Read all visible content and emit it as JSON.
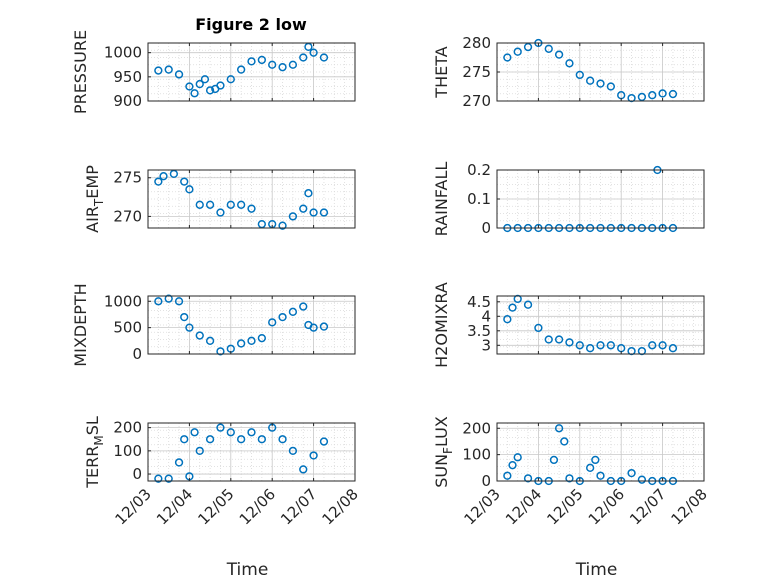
{
  "figure": {
    "title": "Figure 2 low"
  },
  "chart_data": [
    {
      "type": "scatter",
      "title": "Figure 2 low",
      "ylabel": "PRESSURE",
      "ylim": [
        900,
        1020
      ],
      "yticks": [
        900,
        950,
        1000
      ],
      "xlim": [
        "12/03",
        "12/08"
      ],
      "grid": true,
      "marker": "circle-open",
      "color": "#0072BD",
      "x": [
        "12/03 06:00",
        "12/03 12:00",
        "12/03 18:00",
        "12/04 00:00",
        "12/04 03:00",
        "12/04 06:00",
        "12/04 09:00",
        "12/04 12:00",
        "12/04 15:00",
        "12/04 18:00",
        "12/05 00:00",
        "12/05 06:00",
        "12/05 12:00",
        "12/05 18:00",
        "12/06 00:00",
        "12/06 06:00",
        "12/06 12:00",
        "12/06 18:00",
        "12/06 21:00",
        "12/07 00:00",
        "12/07 06:00"
      ],
      "y": [
        963,
        965,
        955,
        930,
        916,
        935,
        945,
        922,
        925,
        932,
        945,
        965,
        982,
        985,
        975,
        970,
        975,
        990,
        1012,
        1000,
        990
      ]
    },
    {
      "type": "scatter",
      "ylabel": "THETA",
      "ylim": [
        270,
        280
      ],
      "yticks": [
        270,
        275,
        280
      ],
      "xlim": [
        "12/03",
        "12/08"
      ],
      "grid": true,
      "marker": "circle-open",
      "color": "#0072BD",
      "x": [
        "12/03 06:00",
        "12/03 12:00",
        "12/03 18:00",
        "12/04 00:00",
        "12/04 06:00",
        "12/04 12:00",
        "12/04 18:00",
        "12/05 00:00",
        "12/05 06:00",
        "12/05 12:00",
        "12/05 18:00",
        "12/06 00:00",
        "12/06 06:00",
        "12/06 12:00",
        "12/06 18:00",
        "12/07 00:00",
        "12/07 06:00"
      ],
      "y": [
        277.5,
        278.5,
        279.3,
        280.0,
        279.0,
        278.0,
        276.5,
        274.5,
        273.5,
        273.0,
        272.5,
        271.0,
        270.5,
        270.7,
        271.0,
        271.3,
        271.2
      ]
    },
    {
      "type": "scatter",
      "ylabel": "AIR_TEMP",
      "ylim": [
        268.5,
        276
      ],
      "yticks": [
        270,
        275
      ],
      "xlim": [
        "12/03",
        "12/08"
      ],
      "grid": true,
      "marker": "circle-open",
      "color": "#0072BD",
      "x": [
        "12/03 06:00",
        "12/03 09:00",
        "12/03 15:00",
        "12/03 21:00",
        "12/04 00:00",
        "12/04 06:00",
        "12/04 12:00",
        "12/04 18:00",
        "12/05 00:00",
        "12/05 06:00",
        "12/05 12:00",
        "12/05 18:00",
        "12/06 00:00",
        "12/06 06:00",
        "12/06 12:00",
        "12/06 18:00",
        "12/06 21:00",
        "12/07 00:00",
        "12/07 06:00"
      ],
      "y": [
        274.5,
        275.2,
        275.5,
        274.5,
        273.5,
        271.5,
        271.5,
        270.5,
        271.5,
        271.5,
        271.0,
        269.0,
        269.0,
        268.8,
        270.0,
        271.0,
        273.0,
        270.5,
        270.5
      ]
    },
    {
      "type": "scatter",
      "ylabel": "RAINFALL",
      "ylim": [
        0,
        0.2
      ],
      "yticks": [
        0,
        0.1,
        0.2
      ],
      "xlim": [
        "12/03",
        "12/08"
      ],
      "grid": true,
      "marker": "circle-open",
      "color": "#0072BD",
      "x": [
        "12/03 06:00",
        "12/03 12:00",
        "12/03 18:00",
        "12/04 00:00",
        "12/04 06:00",
        "12/04 12:00",
        "12/04 18:00",
        "12/05 00:00",
        "12/05 06:00",
        "12/05 12:00",
        "12/05 18:00",
        "12/06 00:00",
        "12/06 06:00",
        "12/06 12:00",
        "12/06 18:00",
        "12/06 21:00",
        "12/07 00:00",
        "12/07 06:00"
      ],
      "y": [
        0,
        0,
        0,
        0,
        0,
        0,
        0,
        0,
        0,
        0,
        0,
        0,
        0,
        0,
        0,
        0.2,
        0,
        0
      ]
    },
    {
      "type": "scatter",
      "ylabel": "MIXDEPTH",
      "ylim": [
        0,
        1100
      ],
      "yticks": [
        0,
        500,
        1000
      ],
      "xlim": [
        "12/03",
        "12/08"
      ],
      "grid": true,
      "marker": "circle-open",
      "color": "#0072BD",
      "x": [
        "12/03 06:00",
        "12/03 12:00",
        "12/03 18:00",
        "12/03 21:00",
        "12/04 00:00",
        "12/04 06:00",
        "12/04 12:00",
        "12/04 18:00",
        "12/05 00:00",
        "12/05 06:00",
        "12/05 12:00",
        "12/05 18:00",
        "12/06 00:00",
        "12/06 06:00",
        "12/06 12:00",
        "12/06 18:00",
        "12/06 21:00",
        "12/07 00:00",
        "12/07 06:00"
      ],
      "y": [
        1000,
        1050,
        1000,
        700,
        500,
        350,
        250,
        50,
        100,
        200,
        250,
        300,
        600,
        700,
        800,
        900,
        550,
        500,
        520
      ]
    },
    {
      "type": "scatter",
      "ylabel": "H2OMIXRA",
      "ylim": [
        2.7,
        4.7
      ],
      "yticks": [
        3,
        3.5,
        4,
        4.5
      ],
      "xlim": [
        "12/03",
        "12/08"
      ],
      "grid": true,
      "marker": "circle-open",
      "color": "#0072BD",
      "x": [
        "12/03 06:00",
        "12/03 09:00",
        "12/03 12:00",
        "12/03 18:00",
        "12/04 00:00",
        "12/04 06:00",
        "12/04 12:00",
        "12/04 18:00",
        "12/05 00:00",
        "12/05 06:00",
        "12/05 12:00",
        "12/05 18:00",
        "12/06 00:00",
        "12/06 06:00",
        "12/06 12:00",
        "12/06 18:00",
        "12/07 00:00",
        "12/07 06:00"
      ],
      "y": [
        3.9,
        4.3,
        4.6,
        4.4,
        3.6,
        3.2,
        3.2,
        3.1,
        3.0,
        2.9,
        3.0,
        3.0,
        2.9,
        2.8,
        2.8,
        3.0,
        3.0,
        2.9
      ]
    },
    {
      "type": "scatter",
      "ylabel": "TERR_MSL",
      "ylim": [
        -30,
        220
      ],
      "yticks": [
        0,
        100,
        200
      ],
      "xlim": [
        "12/03",
        "12/08"
      ],
      "grid": true,
      "marker": "circle-open",
      "color": "#0072BD",
      "x": [
        "12/03 06:00",
        "12/03 12:00",
        "12/03 18:00",
        "12/03 21:00",
        "12/04 00:00",
        "12/04 03:00",
        "12/04 06:00",
        "12/04 12:00",
        "12/04 18:00",
        "12/05 00:00",
        "12/05 06:00",
        "12/05 12:00",
        "12/05 18:00",
        "12/06 00:00",
        "12/06 06:00",
        "12/06 12:00",
        "12/06 18:00",
        "12/07 00:00",
        "12/07 06:00"
      ],
      "y": [
        -20,
        -20,
        50,
        150,
        -10,
        180,
        100,
        150,
        200,
        180,
        150,
        180,
        150,
        200,
        150,
        100,
        20,
        80,
        140
      ]
    },
    {
      "type": "scatter",
      "ylabel": "SUN_FLUX",
      "ylim": [
        0,
        220
      ],
      "yticks": [
        0,
        100,
        200
      ],
      "xlim": [
        "12/03",
        "12/08"
      ],
      "grid": true,
      "marker": "circle-open",
      "color": "#0072BD",
      "x": [
        "12/03 06:00",
        "12/03 09:00",
        "12/03 12:00",
        "12/03 18:00",
        "12/04 00:00",
        "12/04 06:00",
        "12/04 09:00",
        "12/04 12:00",
        "12/04 15:00",
        "12/04 18:00",
        "12/05 00:00",
        "12/05 06:00",
        "12/05 09:00",
        "12/05 12:00",
        "12/05 18:00",
        "12/06 00:00",
        "12/06 06:00",
        "12/06 12:00",
        "12/06 18:00",
        "12/07 00:00",
        "12/07 06:00"
      ],
      "y": [
        20,
        60,
        90,
        10,
        0,
        0,
        80,
        200,
        150,
        10,
        0,
        50,
        80,
        20,
        0,
        0,
        30,
        5,
        0,
        0,
        0
      ]
    }
  ],
  "axes": [
    {
      "ylabel_base": "PRESSURE",
      "ylabel_sub": ""
    },
    {
      "ylabel_base": "THETA",
      "ylabel_sub": ""
    },
    {
      "ylabel_base": "AIR",
      "ylabel_sub": "T",
      "ylabel_tail": "EMP"
    },
    {
      "ylabel_base": "RAINFALL",
      "ylabel_sub": ""
    },
    {
      "ylabel_base": "MIXDEPTH",
      "ylabel_sub": ""
    },
    {
      "ylabel_base": "H2OMIXRA",
      "ylabel_sub": ""
    },
    {
      "ylabel_base": "TERR",
      "ylabel_sub": "M",
      "ylabel_tail": "SL"
    },
    {
      "ylabel_base": "SUN",
      "ylabel_sub": "F",
      "ylabel_tail": "LUX"
    }
  ],
  "xaxis": {
    "ticks": [
      "12/03",
      "12/04",
      "12/05",
      "12/06",
      "12/07",
      "12/08"
    ],
    "label": "Time"
  }
}
